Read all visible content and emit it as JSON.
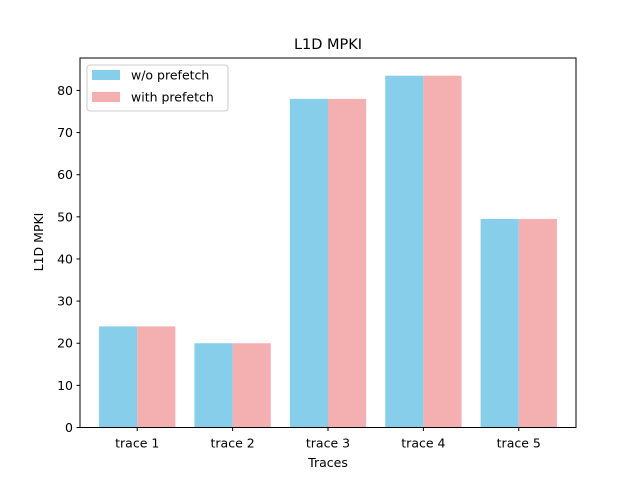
{
  "chart_data": {
    "type": "bar",
    "title": "L1D MPKI",
    "xlabel": "Traces",
    "ylabel": "L1D MPKI",
    "categories": [
      "trace 1",
      "trace 2",
      "trace 3",
      "trace 4",
      "trace 5"
    ],
    "series": [
      {
        "name": "w/o prefetch",
        "color": "#87ceeb",
        "values": [
          24,
          20,
          78,
          83.5,
          49.5
        ]
      },
      {
        "name": "with prefetch",
        "color": "#f4b0b1",
        "values": [
          24,
          20,
          78,
          83.5,
          49.5
        ]
      }
    ],
    "ylim": [
      0,
      87.7
    ],
    "yticks": [
      0,
      10,
      20,
      30,
      40,
      50,
      60,
      70,
      80
    ],
    "grid": false,
    "legend_position": "top-left"
  }
}
